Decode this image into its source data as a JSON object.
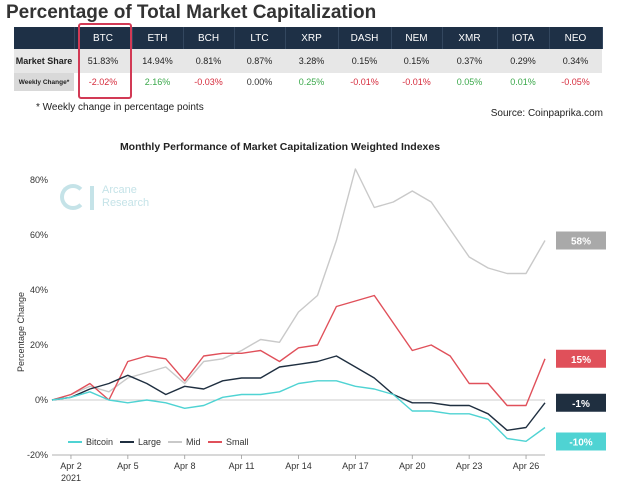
{
  "title": "Percentage of Total Market Capitalization",
  "table": {
    "coins": [
      "BTC",
      "ETH",
      "BCH",
      "LTC",
      "XRP",
      "DASH",
      "NEM",
      "XMR",
      "IOTA",
      "NEO"
    ],
    "market_share_label": "Market Share",
    "weekly_change_label": "Weekly Change*",
    "market_share": [
      "51.83%",
      "14.94%",
      "0.81%",
      "0.87%",
      "3.28%",
      "0.15%",
      "0.15%",
      "0.37%",
      "0.29%",
      "0.34%"
    ],
    "weekly_change": [
      "-2.02%",
      "2.16%",
      "-0.03%",
      "0.00%",
      "0.25%",
      "-0.01%",
      "-0.01%",
      "0.05%",
      "0.01%",
      "-0.05%"
    ],
    "highlighted_coin": "BTC"
  },
  "footnote": "* Weekly change in percentage points",
  "source": "Source: Coinpaprika.com",
  "watermark": {
    "line1": "Arcane",
    "line2": "Research"
  },
  "colors": {
    "header_bg": "#1e3046",
    "negative": "#d62b3c",
    "positive": "#3aa84a",
    "bitcoin": "#4fd3d3",
    "large": "#1f2f40",
    "mid": "#c9c9c9",
    "small": "#e0505a",
    "highlight": "#d23a55"
  },
  "chart_data": {
    "type": "line",
    "title": "Monthly Performance of Market Capitalization Weighted Indexes",
    "ylabel": "Percentage Change",
    "xlabel": "",
    "ylim": [
      -20,
      80
    ],
    "yticks": [
      -20,
      0,
      20,
      40,
      60,
      80
    ],
    "ytick_labels": [
      "-20%",
      "0%",
      "20%",
      "40%",
      "60%",
      "80%"
    ],
    "x": [
      1,
      2,
      3,
      4,
      5,
      6,
      7,
      8,
      9,
      10,
      11,
      12,
      13,
      14,
      15,
      16,
      17,
      18,
      19,
      20,
      21,
      22,
      23,
      24,
      25,
      26,
      27
    ],
    "xtick_values": [
      2,
      5,
      8,
      11,
      14,
      17,
      20,
      23,
      26
    ],
    "xtick_labels": [
      "Apr 2",
      "Apr 5",
      "Apr 8",
      "Apr 11",
      "Apr 14",
      "Apr 17",
      "Apr 20",
      "Apr 23",
      "Apr 26"
    ],
    "year_label": "2021",
    "legend": "bottom-left",
    "grid": false,
    "series": [
      {
        "name": "Bitcoin",
        "end_label": "-10%",
        "values": [
          0,
          1,
          3,
          0,
          -1,
          0,
          -1,
          -3,
          -2,
          1,
          2,
          2,
          3,
          6,
          7,
          7,
          5,
          4,
          2,
          -4,
          -4,
          -5,
          -5,
          -7,
          -14,
          -15,
          -10
        ]
      },
      {
        "name": "Large",
        "end_label": "-1%",
        "values": [
          0,
          1,
          4,
          6,
          9,
          6,
          2,
          5,
          4,
          7,
          8,
          8,
          12,
          13,
          14,
          16,
          12,
          8,
          2,
          -1,
          -1,
          -2,
          -2,
          -5,
          -11,
          -10,
          -1
        ]
      },
      {
        "name": "Mid",
        "end_label": "58%",
        "values": [
          0,
          2,
          5,
          3,
          8,
          10,
          12,
          6,
          14,
          15,
          18,
          22,
          21,
          32,
          38,
          58,
          84,
          70,
          72,
          76,
          72,
          62,
          52,
          48,
          46,
          46,
          58
        ]
      },
      {
        "name": "Small",
        "end_label": "15%",
        "values": [
          0,
          2,
          6,
          0,
          14,
          16,
          15,
          7,
          16,
          17,
          17,
          18,
          14,
          19,
          20,
          34,
          36,
          38,
          28,
          18,
          20,
          16,
          6,
          6,
          -2,
          -2,
          15
        ]
      }
    ]
  }
}
